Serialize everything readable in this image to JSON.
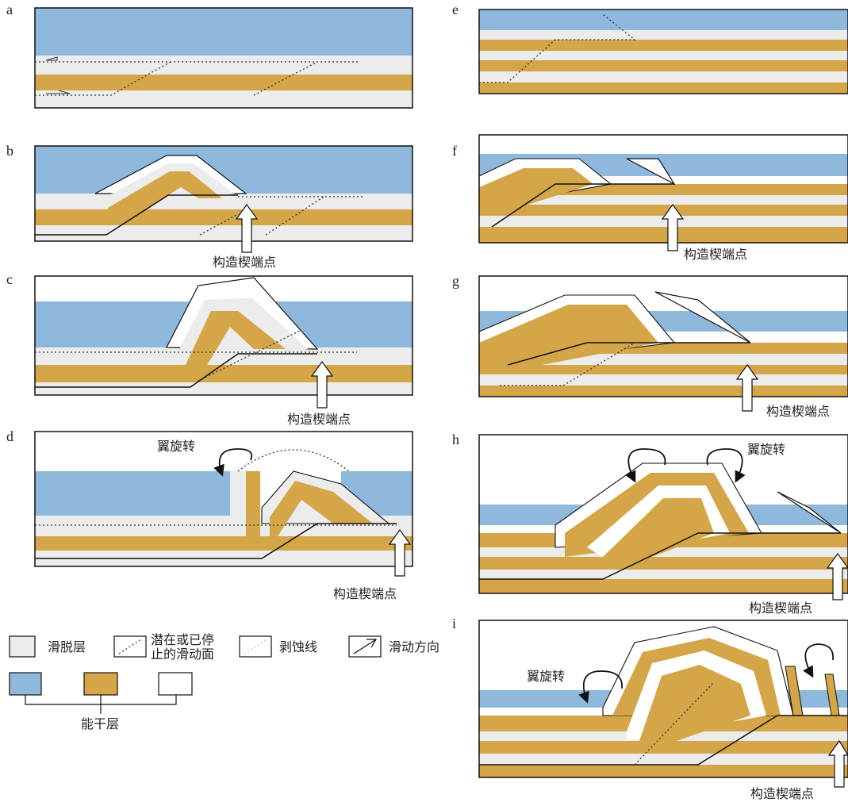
{
  "panels": [
    {
      "id": "a",
      "label": "a"
    },
    {
      "id": "b",
      "label": "b",
      "annotations": [
        "构造楔端点"
      ]
    },
    {
      "id": "c",
      "label": "c",
      "annotations": [
        "构造楔端点"
      ]
    },
    {
      "id": "d",
      "label": "d",
      "annotations": [
        "翼旋转",
        "构造楔端点"
      ]
    },
    {
      "id": "e",
      "label": "e"
    },
    {
      "id": "f",
      "label": "f",
      "annotations": [
        "构造楔端点"
      ]
    },
    {
      "id": "g",
      "label": "g",
      "annotations": [
        "构造楔端点"
      ]
    },
    {
      "id": "h",
      "label": "h",
      "annotations": [
        "翼旋转",
        "构造楔端点"
      ]
    },
    {
      "id": "i",
      "label": "i",
      "annotations": [
        "翼旋转",
        "构造楔端点"
      ]
    }
  ],
  "legend": {
    "items": [
      {
        "key": "detachment",
        "label": "滑脱层"
      },
      {
        "key": "slip_surface",
        "label_line1": "潜在或已停",
        "label_line2": "止的滑动面"
      },
      {
        "key": "erosion",
        "label": "剥蚀线"
      },
      {
        "key": "slip_direction",
        "label": "滑动方向"
      }
    ],
    "competent_label": "能干层"
  },
  "colors": {
    "blue": "#8fb9dc",
    "gold": "#d4a647",
    "detachment": "#ececec",
    "white": "#ffffff",
    "outline": "#1a1a1a"
  }
}
